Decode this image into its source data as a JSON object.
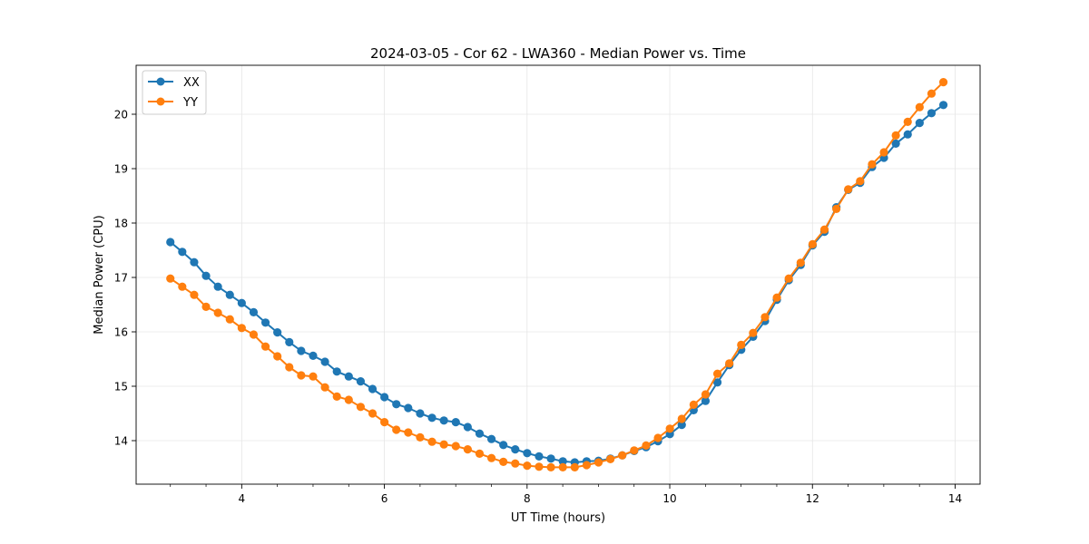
{
  "chart_data": {
    "type": "line",
    "title": "2024-03-05 - Cor 62 - LWA360 - Median Power vs. Time",
    "xlabel": "UT Time (hours)",
    "ylabel": "Median Power (CPU)",
    "xlim": [
      2.52,
      14.35
    ],
    "ylim": [
      13.2,
      20.9
    ],
    "xticks": [
      4,
      6,
      8,
      10,
      12,
      14
    ],
    "xtick_labels": [
      "4",
      "6",
      "8",
      "10",
      "12",
      "14"
    ],
    "yticks": [
      14,
      15,
      16,
      17,
      18,
      19,
      20
    ],
    "ytick_labels": [
      "14",
      "15",
      "16",
      "17",
      "18",
      "19",
      "20"
    ],
    "grid": true,
    "legend_position": "top-left",
    "x_start": 3.0,
    "x_step": 0.1667,
    "series": [
      {
        "name": "XX",
        "color": "#1f77b4",
        "values": [
          17.65,
          17.47,
          17.28,
          17.03,
          16.83,
          16.68,
          16.53,
          16.36,
          16.17,
          15.99,
          15.81,
          15.65,
          15.56,
          15.45,
          15.27,
          15.18,
          15.09,
          14.95,
          14.8,
          14.67,
          14.6,
          14.5,
          14.42,
          14.37,
          14.34,
          14.25,
          14.13,
          14.03,
          13.92,
          13.84,
          13.77,
          13.71,
          13.67,
          13.62,
          13.6,
          13.62,
          13.63,
          13.67,
          13.73,
          13.81,
          13.88,
          13.99,
          14.12,
          14.29,
          14.56,
          14.73,
          15.07,
          15.39,
          15.67,
          15.91,
          16.2,
          16.59,
          16.95,
          17.23,
          17.59,
          17.84,
          18.29,
          18.61,
          18.74,
          19.03,
          19.2,
          19.46,
          19.63,
          19.84,
          20.02,
          20.17
        ]
      },
      {
        "name": "YY",
        "color": "#ff7f0e",
        "values": [
          16.98,
          16.83,
          16.68,
          16.46,
          16.35,
          16.23,
          16.07,
          15.95,
          15.73,
          15.55,
          15.35,
          15.2,
          15.18,
          14.98,
          14.81,
          14.75,
          14.62,
          14.5,
          14.34,
          14.2,
          14.15,
          14.06,
          13.98,
          13.93,
          13.9,
          13.84,
          13.76,
          13.68,
          13.61,
          13.58,
          13.54,
          13.52,
          13.51,
          13.51,
          13.51,
          13.55,
          13.6,
          13.66,
          13.73,
          13.82,
          13.91,
          14.05,
          14.22,
          14.4,
          14.66,
          14.85,
          15.23,
          15.42,
          15.76,
          15.98,
          16.27,
          16.63,
          16.98,
          17.27,
          17.61,
          17.88,
          18.26,
          18.62,
          18.77,
          19.08,
          19.3,
          19.61,
          19.86,
          20.13,
          20.38,
          20.59
        ]
      }
    ]
  }
}
